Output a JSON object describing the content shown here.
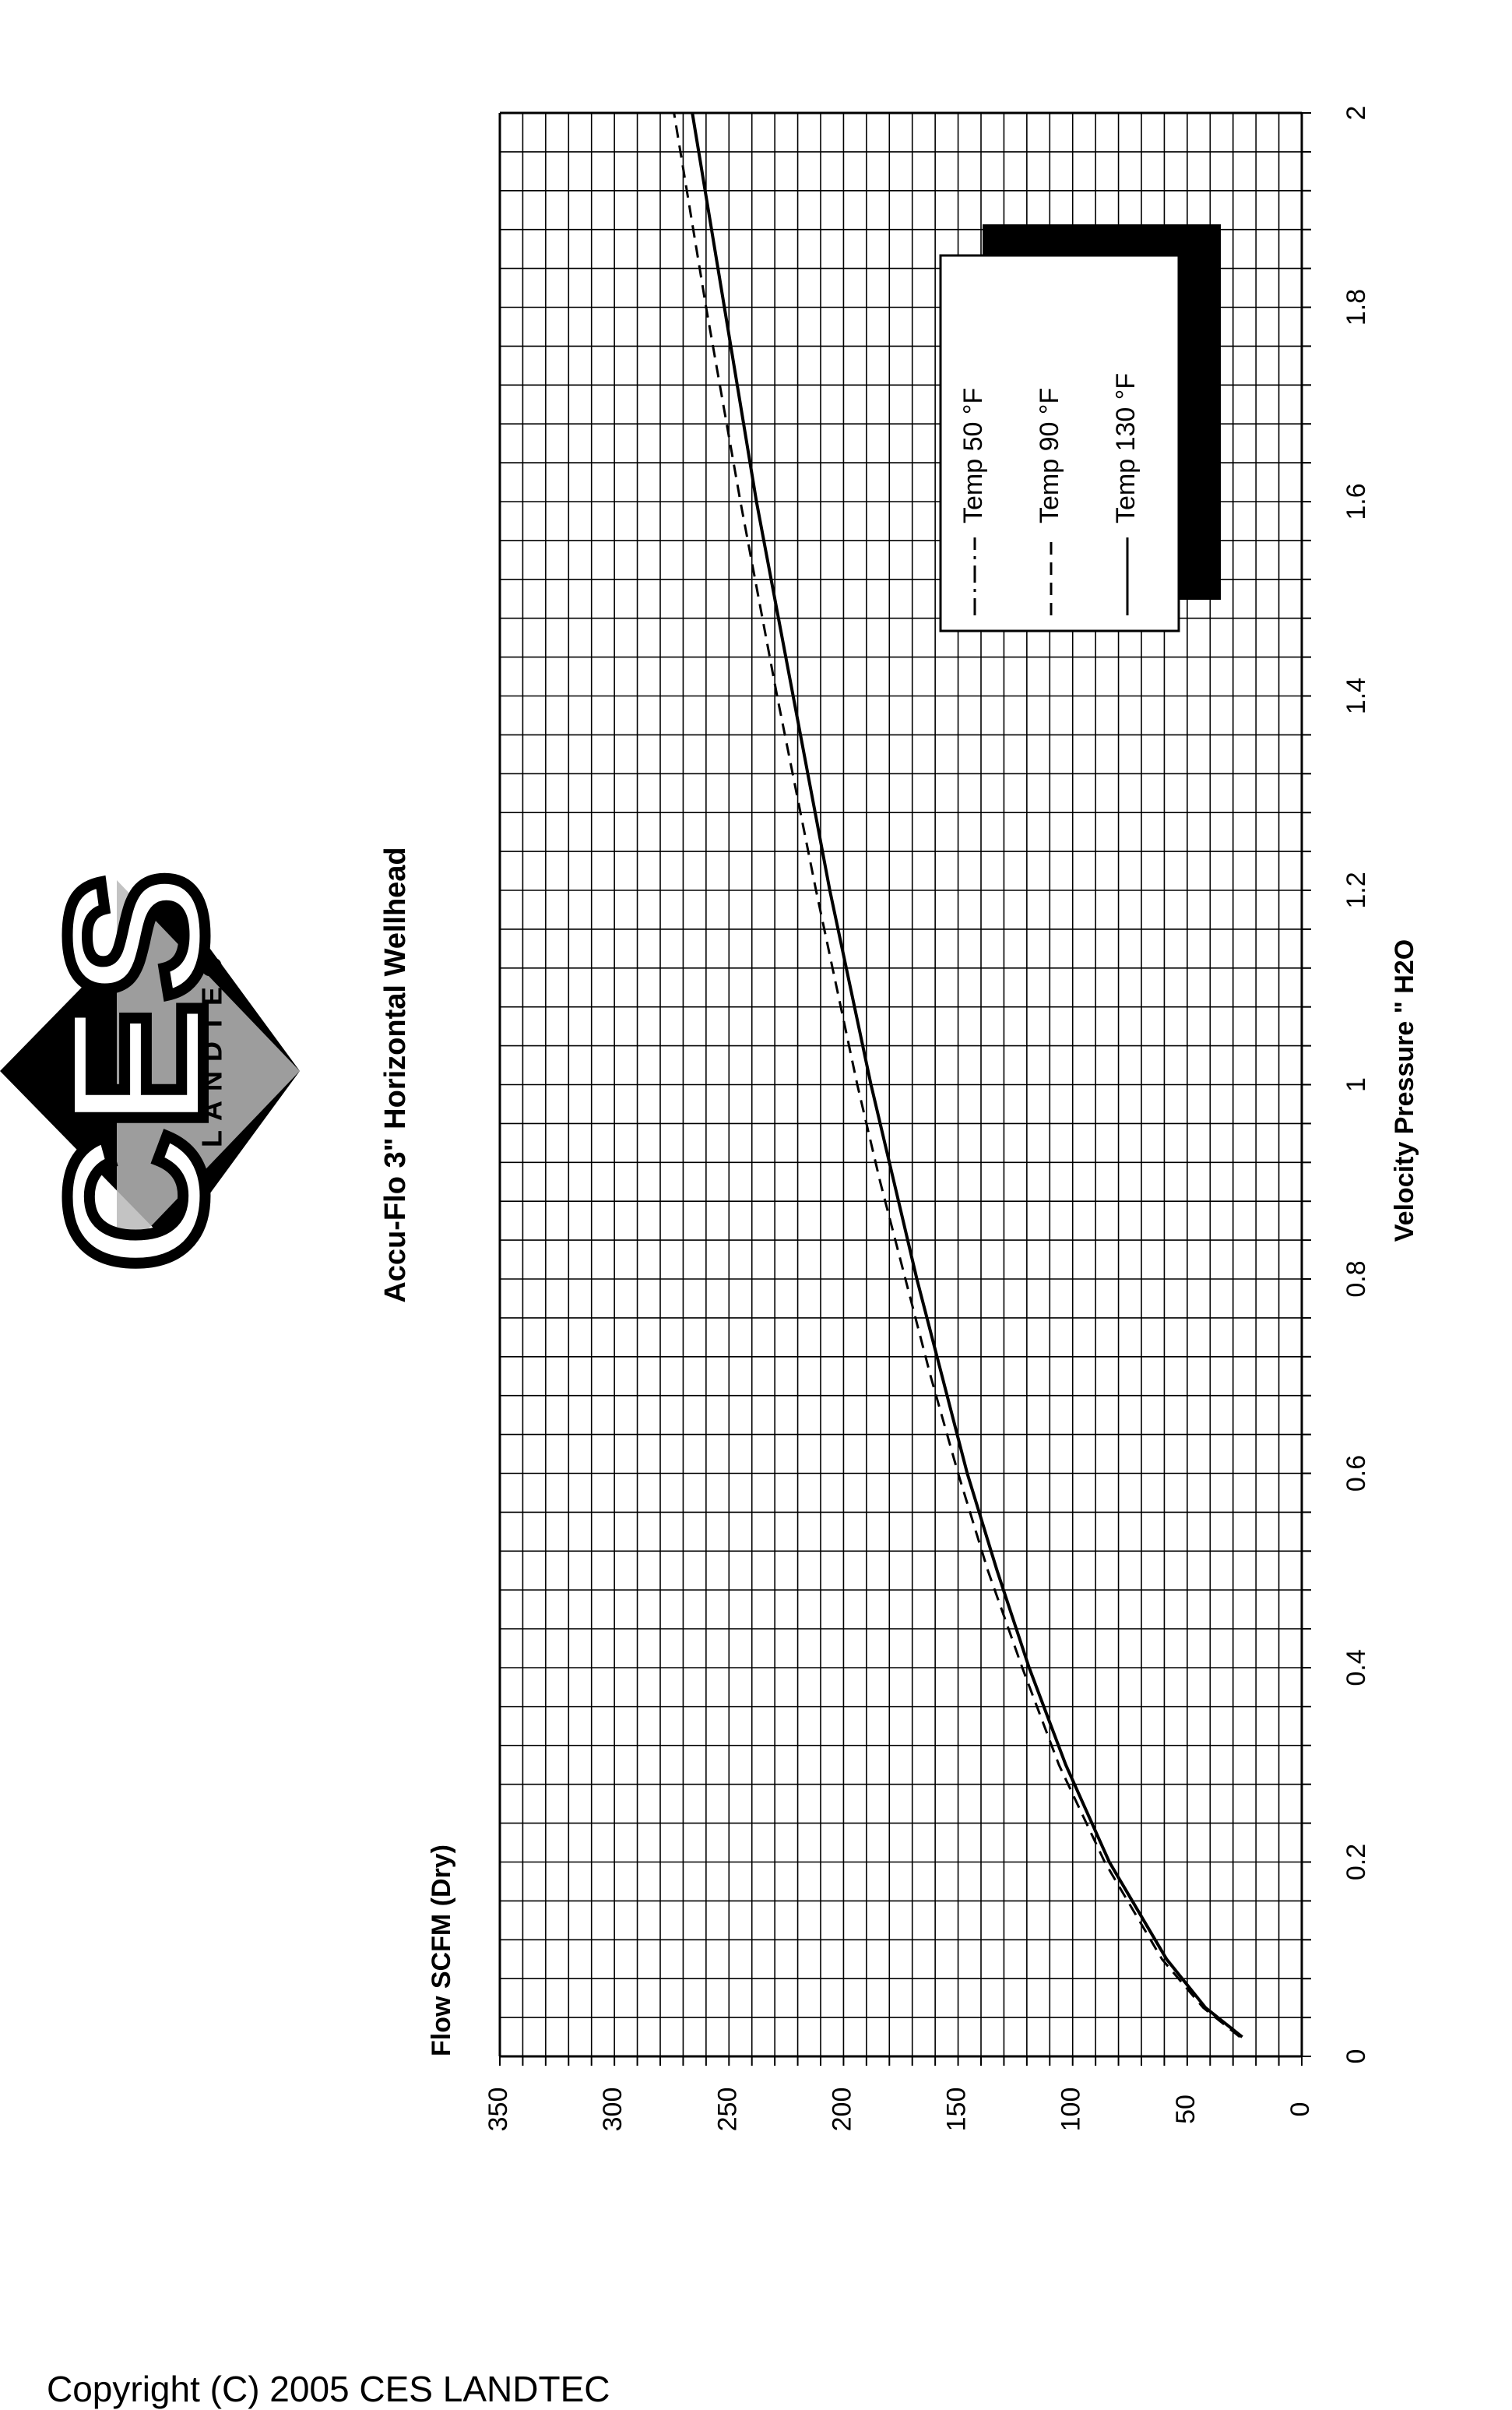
{
  "logo": {
    "text": "CES",
    "subtext": "LANDTEC",
    "icon": "ces-landtec-logo"
  },
  "footer": {
    "copyright": "Copyright (C) 2005 CES LANDTEC"
  },
  "chart_data": {
    "type": "line",
    "orientation": "rotated-90",
    "title": "Accu-Flo 3\" Horizontal Wellhead",
    "xlabel": "Velocity Pressure \" H2O",
    "ylabel": "Flow SCFM (Dry)",
    "xlim": [
      0,
      2
    ],
    "ylim": [
      0,
      350
    ],
    "x_ticks": [
      "0",
      "0.2",
      "0.4",
      "0.6",
      "0.8",
      "1",
      "1.2",
      "1.4",
      "1.6",
      "1.8",
      "2"
    ],
    "y_ticks": [
      "0",
      "50",
      "100",
      "150",
      "200",
      "250",
      "300",
      "350"
    ],
    "grid": true,
    "legend_position": "top-right",
    "x": [
      0.02,
      0.05,
      0.1,
      0.2,
      0.3,
      0.4,
      0.5,
      0.6,
      0.7,
      0.8,
      0.9,
      1.0,
      1.2,
      1.4,
      1.6,
      1.8,
      2.0
    ],
    "series": [
      {
        "name": "Temp 50 °F",
        "style": "dash-dot",
        "values": [
          26,
          42,
          59,
          84,
          103,
          119,
          133,
          146,
          157,
          168,
          178,
          188,
          206,
          222,
          238,
          252,
          266
        ]
      },
      {
        "name": "Temp 90 °F",
        "style": "dashed",
        "values": [
          27,
          43,
          61,
          86,
          106,
          122,
          137,
          150,
          162,
          173,
          184,
          194,
          212,
          229,
          245,
          260,
          274
        ]
      },
      {
        "name": "Temp 130 °F",
        "style": "solid",
        "values": [
          26,
          42,
          59,
          84,
          103,
          119,
          133,
          146,
          157,
          168,
          178,
          188,
          206,
          222,
          238,
          252,
          266
        ]
      }
    ]
  }
}
